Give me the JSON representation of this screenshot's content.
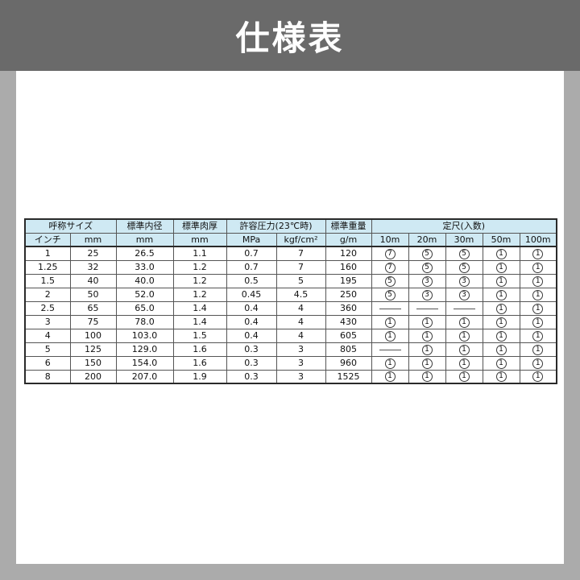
{
  "page": {
    "title": "仕様表"
  },
  "colors": {
    "banner_bg": "#6a6a6a",
    "page_bg": "#ababab",
    "panel_bg": "#ffffff",
    "header_bg": "#cfe9f3",
    "border": "#2a2a2a"
  },
  "table": {
    "group_headers": [
      {
        "label": "呼称サイズ",
        "colspan": 2
      },
      {
        "label": "標準内径",
        "colspan": 1
      },
      {
        "label": "標準肉厚",
        "colspan": 1
      },
      {
        "label": "許容圧力(23℃時)",
        "colspan": 2
      },
      {
        "label": "標準重量",
        "colspan": 1
      },
      {
        "label": "定尺(入数)",
        "colspan": 5
      }
    ],
    "unit_headers": [
      "インチ",
      "mm",
      "mm",
      "mm",
      "MPa",
      "kgf/cm²",
      "g/m",
      "10m",
      "20m",
      "30m",
      "50m",
      "100m"
    ],
    "quantity_col_start": 7,
    "rows": [
      [
        "1",
        "25",
        "26.5",
        "1.1",
        "0.7",
        "7",
        "120",
        "7",
        "5",
        "5",
        "1",
        "1"
      ],
      [
        "1.25",
        "32",
        "33.0",
        "1.2",
        "0.7",
        "7",
        "160",
        "7",
        "5",
        "5",
        "1",
        "1"
      ],
      [
        "1.5",
        "40",
        "40.0",
        "1.2",
        "0.5",
        "5",
        "195",
        "5",
        "3",
        "3",
        "1",
        "1"
      ],
      [
        "2",
        "50",
        "52.0",
        "1.2",
        "0.45",
        "4.5",
        "250",
        "5",
        "3",
        "3",
        "1",
        "1"
      ],
      [
        "2.5",
        "65",
        "65.0",
        "1.4",
        "0.4",
        "4",
        "360",
        "—",
        "—",
        "—",
        "1",
        "1"
      ],
      [
        "3",
        "75",
        "78.0",
        "1.4",
        "0.4",
        "4",
        "430",
        "1",
        "1",
        "1",
        "1",
        "1"
      ],
      [
        "4",
        "100",
        "103.0",
        "1.5",
        "0.4",
        "4",
        "605",
        "1",
        "1",
        "1",
        "1",
        "1"
      ],
      [
        "5",
        "125",
        "129.0",
        "1.6",
        "0.3",
        "3",
        "805",
        "—",
        "1",
        "1",
        "1",
        "1"
      ],
      [
        "6",
        "150",
        "154.0",
        "1.6",
        "0.3",
        "3",
        "960",
        "1",
        "1",
        "1",
        "1",
        "1"
      ],
      [
        "8",
        "200",
        "207.0",
        "1.9",
        "0.3",
        "3",
        "1525",
        "1",
        "1",
        "1",
        "1",
        "1"
      ]
    ]
  }
}
